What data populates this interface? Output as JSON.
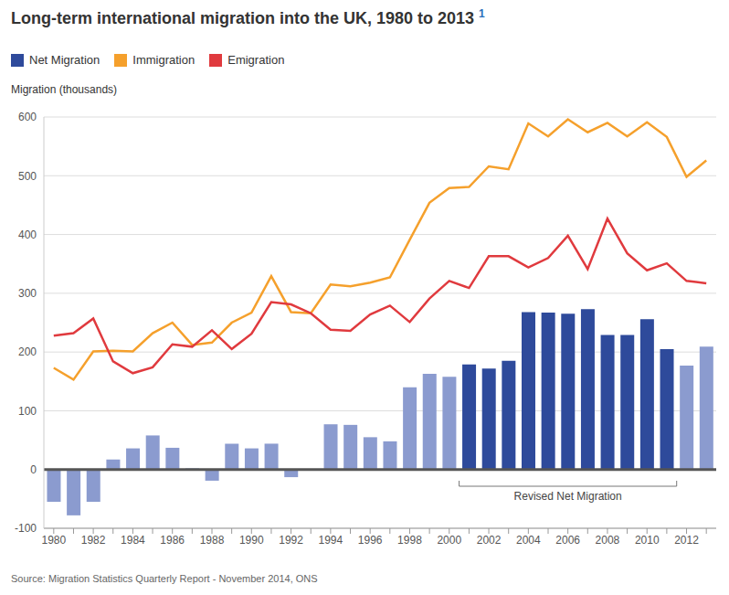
{
  "chart_data": {
    "type": "bar",
    "title": "Long-term international migration into the UK, 1980 to 2013",
    "title_note": "1",
    "y_label": "Migration (thousands)",
    "source": "Source: Migration Statistics Quarterly Report - November 2014, ONS",
    "categories": [
      "1980",
      null,
      "1982",
      null,
      "1984",
      null,
      "1986",
      null,
      "1988",
      null,
      "1990",
      null,
      "1992",
      null,
      "1994",
      null,
      "1996",
      null,
      "1998",
      null,
      "2000",
      null,
      "2002",
      null,
      "2004",
      null,
      "2006",
      null,
      "2008",
      null,
      "2010",
      null,
      "2012",
      null
    ],
    "series": [
      {
        "name": "Net Migration",
        "type": "bar",
        "color": "#2e4a9b",
        "colors": [
          "#8b9bcf",
          "#8b9bcf",
          "#8b9bcf",
          "#8b9bcf",
          "#8b9bcf",
          "#8b9bcf",
          "#8b9bcf",
          "#8b9bcf",
          "#8b9bcf",
          "#8b9bcf",
          "#8b9bcf",
          "#8b9bcf",
          "#8b9bcf",
          "#8b9bcf",
          "#8b9bcf",
          "#8b9bcf",
          "#8b9bcf",
          "#8b9bcf",
          "#8b9bcf",
          "#8b9bcf",
          "#8b9bcf",
          "#2e4a9b",
          "#2e4a9b",
          "#2e4a9b",
          "#2e4a9b",
          "#2e4a9b",
          "#2e4a9b",
          "#2e4a9b",
          "#2e4a9b",
          "#2e4a9b",
          "#2e4a9b",
          "#2e4a9b",
          "#8b9bcf",
          "#8b9bcf"
        ],
        "values": [
          -55,
          -78,
          -55,
          17,
          36,
          58,
          37,
          2,
          -19,
          44,
          36,
          44,
          -13,
          -1,
          77,
          76,
          55,
          48,
          140,
          163,
          158,
          179,
          172,
          185,
          268,
          267,
          265,
          273,
          229,
          229,
          256,
          205,
          177,
          209
        ]
      },
      {
        "name": "Immigration",
        "type": "line",
        "color": "#f5a02c",
        "values": [
          173,
          153,
          201,
          202,
          201,
          232,
          250,
          212,
          216,
          250,
          267,
          329,
          268,
          266,
          315,
          312,
          318,
          327,
          391,
          454,
          479,
          481,
          516,
          511,
          589,
          567,
          596,
          574,
          590,
          567,
          591,
          566,
          498,
          526
        ]
      },
      {
        "name": "Emigration",
        "type": "line",
        "color": "#e03a3e",
        "values": [
          228,
          232,
          257,
          184,
          164,
          174,
          213,
          209,
          237,
          205,
          231,
          285,
          281,
          266,
          238,
          236,
          264,
          279,
          251,
          291,
          321,
          309,
          363,
          363,
          344,
          360,
          398,
          341,
          427,
          368,
          339,
          351,
          321,
          317
        ]
      }
    ],
    "ylim": [
      -100,
      600
    ],
    "yticks": [
      -100,
      0,
      100,
      200,
      300,
      400,
      500,
      600
    ],
    "grid": true,
    "legend": "top-left",
    "annotations": [
      {
        "text": "Revised Net Migration",
        "span": [
          21,
          31
        ]
      }
    ]
  }
}
